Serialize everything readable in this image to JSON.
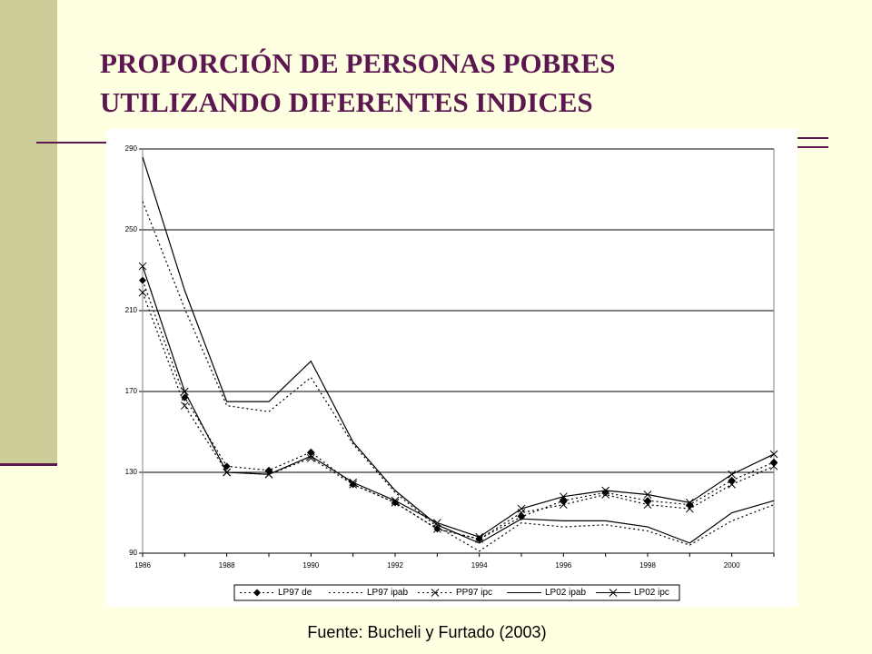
{
  "title": [
    "PROPORCIÓN DE PERSONAS POBRES",
    "UTILIZANDO DIFERENTES INDICES"
  ],
  "source": "Fuente: Bucheli y Furtado (2003)",
  "chart_data": {
    "type": "line",
    "x": [
      1986,
      1987,
      1988,
      1989,
      1990,
      1991,
      1992,
      1993,
      1994,
      1995,
      1996,
      1997,
      1998,
      1999,
      2000,
      2001
    ],
    "xlim": [
      1986,
      2001
    ],
    "xticks": [
      1986,
      1988,
      1990,
      1992,
      1994,
      1996,
      1998,
      2000
    ],
    "ylim": [
      90,
      290
    ],
    "yticks": [
      90,
      130,
      170,
      210,
      250,
      290
    ],
    "grid": true,
    "legend": "bottom",
    "series": [
      {
        "name": "LP97 de",
        "color": "#000000",
        "style": "dotted",
        "marker": "diamond",
        "values": [
          225,
          167,
          133,
          131,
          140,
          124,
          115,
          102,
          97,
          108,
          116,
          120,
          116,
          114,
          126,
          135
        ]
      },
      {
        "name": "LP97 ipab",
        "color": "#000000",
        "style": "dotted",
        "values": [
          264,
          211,
          163,
          160,
          177,
          144,
          120,
          103,
          91,
          105,
          103,
          104,
          101,
          94,
          106,
          114
        ]
      },
      {
        "name": "PP97 ipc",
        "color": "#000000",
        "style": "dotted",
        "marker": "x",
        "values": [
          219,
          163,
          130,
          129,
          137,
          124,
          115,
          102,
          97,
          110,
          114,
          119,
          114,
          112,
          124,
          133
        ]
      },
      {
        "name": "LP02 ipab",
        "color": "#000000",
        "style": "solid",
        "values": [
          286,
          220,
          165,
          165,
          185,
          145,
          121,
          104,
          95,
          107,
          106,
          106,
          103,
          95,
          110,
          116
        ]
      },
      {
        "name": "LP02 ipc",
        "color": "#000000",
        "style": "solid",
        "marker": "x",
        "values": [
          232,
          170,
          130,
          129,
          138,
          125,
          116,
          105,
          98,
          112,
          118,
          121,
          119,
          115,
          129,
          139
        ]
      }
    ]
  }
}
